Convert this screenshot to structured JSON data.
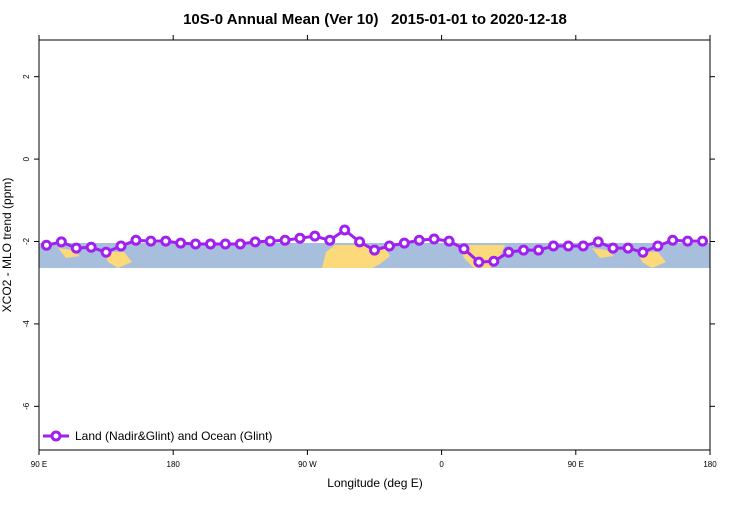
{
  "chart_data": {
    "type": "line",
    "title": "10S-0 Annual Mean (Ver 10)   2015-01-01 to 2020-12-18",
    "x_label": "Longitude (deg E)",
    "y_label": "XCO2 - MLO trend (ppm)",
    "xlim": [
      90,
      540
    ],
    "xticks": [
      {
        "value": 90,
        "label": "90 E"
      },
      {
        "value": 180,
        "label": "180"
      },
      {
        "value": 270,
        "label": "90 W"
      },
      {
        "value": 360,
        "label": "0"
      },
      {
        "value": 450,
        "label": "90 E"
      },
      {
        "value": 540,
        "label": "180"
      }
    ],
    "ylim": [
      -7.06,
      2.89
    ],
    "yticks": [
      2,
      0,
      -2,
      -4,
      -6
    ],
    "legend": "bottom-left",
    "x": [
      95,
      105,
      115,
      125,
      135,
      145,
      155,
      165,
      175,
      185,
      195,
      205,
      215,
      225,
      235,
      245,
      255,
      265,
      275,
      285,
      295,
      305,
      315,
      325,
      335,
      345,
      355,
      365,
      375,
      385,
      395,
      405,
      415,
      425,
      435,
      445,
      455,
      465,
      475,
      485,
      495,
      505,
      515,
      525,
      535
    ],
    "series": [
      {
        "name": "Land (Nadir&Glint) and Ocean (Glint)",
        "color": "#a020f0",
        "values": [
          -2.09,
          -2.01,
          -2.16,
          -2.14,
          -2.26,
          -2.11,
          -1.97,
          -1.99,
          -1.99,
          -2.04,
          -2.06,
          -2.06,
          -2.06,
          -2.06,
          -2.01,
          -1.99,
          -1.97,
          -1.92,
          -1.87,
          -1.97,
          -1.72,
          -2.01,
          -2.21,
          -2.11,
          -2.04,
          -1.97,
          -1.94,
          -1.99,
          -2.18,
          -2.5,
          -2.48,
          -2.26,
          -2.21,
          -2.21,
          -2.11,
          -2.11,
          -2.11,
          -2.01,
          -2.16,
          -2.16,
          -2.26,
          -2.11,
          -1.97,
          -1.99,
          -1.99
        ]
      }
    ]
  }
}
